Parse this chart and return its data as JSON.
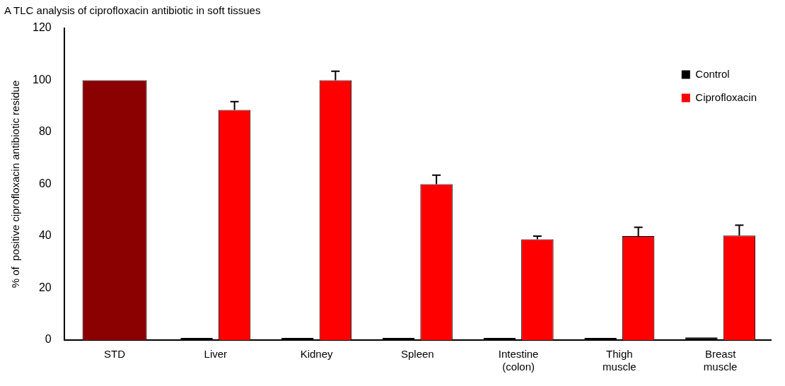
{
  "chart_data": {
    "type": "bar",
    "title": "A  TLC analysis of ciprofloxacin antibiotic in soft tissues",
    "ylabel": "% of  positive ciprofloxacin antibiotic residue",
    "categories": [
      "STD",
      "Liver",
      "Kidney",
      "Spleen",
      "Intestine\n(colon)",
      "Thigh\nmuscle",
      "Breast\nmuscle"
    ],
    "series": [
      {
        "name": "Control",
        "color": "#000000",
        "values": [
          null,
          0.8,
          0.8,
          0.8,
          0.8,
          0.8,
          1
        ]
      },
      {
        "name": "Ciprofloxacin",
        "color": "#ff0000",
        "colors": [
          "#8b0000",
          "#ff0000",
          "#ff0000",
          "#ff0000",
          "#ff0000",
          "#ff0000",
          "#ff0000"
        ],
        "values": [
          100,
          88.6,
          100,
          60,
          38.8,
          40,
          40.2
        ],
        "errors": [
          null,
          3.2,
          3.5,
          3.5,
          1.2,
          3.4,
          4
        ]
      }
    ],
    "ylim": [
      0,
      120
    ],
    "yticks": [
      0,
      20,
      40,
      60,
      80,
      100,
      120
    ],
    "grid": false,
    "legend": "top right"
  }
}
